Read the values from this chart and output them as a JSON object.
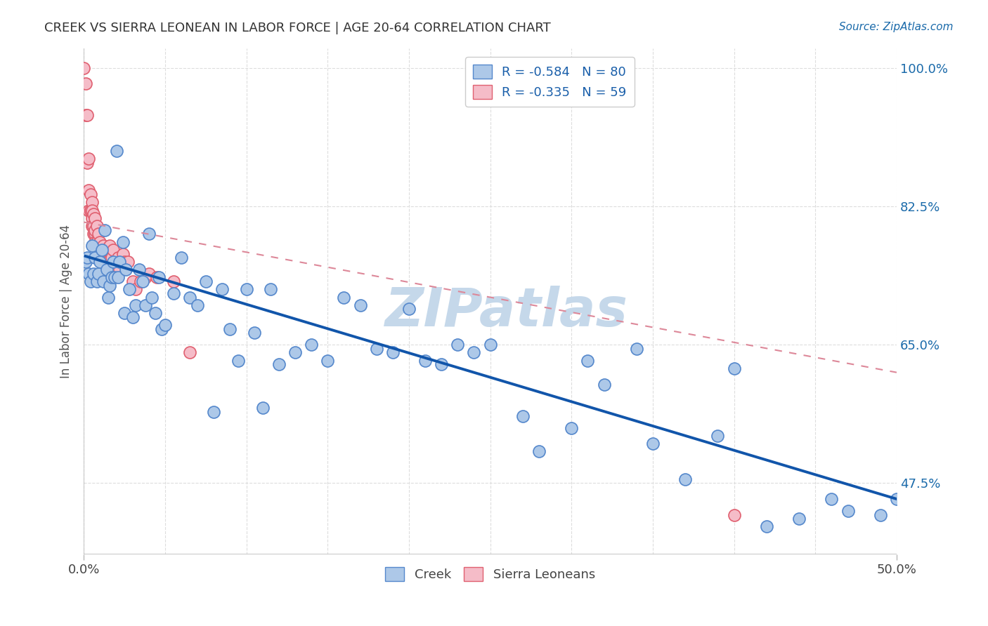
{
  "title": "CREEK VS SIERRA LEONEAN IN LABOR FORCE | AGE 20-64 CORRELATION CHART",
  "source": "Source: ZipAtlas.com",
  "ylabel": "In Labor Force | Age 20-64",
  "xlim": [
    0.0,
    0.5
  ],
  "ylim": [
    0.385,
    1.025
  ],
  "ytick_labels": [
    "100.0%",
    "82.5%",
    "65.0%",
    "47.5%"
  ],
  "ytick_values": [
    1.0,
    0.825,
    0.65,
    0.475
  ],
  "creek_R": -0.584,
  "creek_N": 80,
  "sierra_R": -0.335,
  "sierra_N": 59,
  "creek_color": "#adc8e8",
  "creek_edge_color": "#5588cc",
  "sierra_color": "#f5bcc8",
  "sierra_edge_color": "#e06070",
  "creek_line_color": "#1155aa",
  "sierra_line_color": "#dd8899",
  "watermark_color": "#c5d8ea",
  "background_color": "#ffffff",
  "grid_color": "#dddddd",
  "creek_scatter_x": [
    0.001,
    0.002,
    0.003,
    0.004,
    0.005,
    0.006,
    0.007,
    0.008,
    0.009,
    0.01,
    0.011,
    0.012,
    0.013,
    0.014,
    0.015,
    0.016,
    0.017,
    0.018,
    0.019,
    0.02,
    0.021,
    0.022,
    0.024,
    0.025,
    0.026,
    0.028,
    0.03,
    0.032,
    0.034,
    0.036,
    0.038,
    0.04,
    0.042,
    0.044,
    0.046,
    0.048,
    0.05,
    0.055,
    0.06,
    0.065,
    0.07,
    0.075,
    0.08,
    0.085,
    0.09,
    0.095,
    0.1,
    0.105,
    0.11,
    0.115,
    0.12,
    0.13,
    0.14,
    0.15,
    0.16,
    0.17,
    0.18,
    0.19,
    0.2,
    0.21,
    0.22,
    0.23,
    0.24,
    0.25,
    0.27,
    0.28,
    0.3,
    0.31,
    0.32,
    0.34,
    0.35,
    0.37,
    0.39,
    0.4,
    0.42,
    0.44,
    0.46,
    0.47,
    0.49,
    0.5
  ],
  "creek_scatter_y": [
    0.755,
    0.76,
    0.74,
    0.73,
    0.775,
    0.74,
    0.76,
    0.73,
    0.74,
    0.755,
    0.77,
    0.73,
    0.795,
    0.745,
    0.71,
    0.725,
    0.735,
    0.755,
    0.735,
    0.895,
    0.735,
    0.755,
    0.78,
    0.69,
    0.745,
    0.72,
    0.685,
    0.7,
    0.745,
    0.73,
    0.7,
    0.79,
    0.71,
    0.69,
    0.735,
    0.67,
    0.675,
    0.715,
    0.76,
    0.71,
    0.7,
    0.73,
    0.565,
    0.72,
    0.67,
    0.63,
    0.72,
    0.665,
    0.57,
    0.72,
    0.625,
    0.64,
    0.65,
    0.63,
    0.71,
    0.7,
    0.645,
    0.64,
    0.695,
    0.63,
    0.625,
    0.65,
    0.64,
    0.65,
    0.56,
    0.515,
    0.545,
    0.63,
    0.6,
    0.645,
    0.525,
    0.48,
    0.535,
    0.62,
    0.42,
    0.43,
    0.455,
    0.44,
    0.435,
    0.455
  ],
  "sierra_scatter_x": [
    0.0,
    0.001,
    0.001,
    0.002,
    0.002,
    0.003,
    0.003,
    0.003,
    0.004,
    0.004,
    0.004,
    0.005,
    0.005,
    0.005,
    0.005,
    0.006,
    0.006,
    0.006,
    0.007,
    0.007,
    0.007,
    0.007,
    0.008,
    0.008,
    0.008,
    0.009,
    0.009,
    0.01,
    0.01,
    0.01,
    0.011,
    0.011,
    0.012,
    0.012,
    0.013,
    0.013,
    0.014,
    0.014,
    0.015,
    0.015,
    0.016,
    0.017,
    0.018,
    0.019,
    0.02,
    0.021,
    0.022,
    0.024,
    0.025,
    0.027,
    0.03,
    0.032,
    0.035,
    0.038,
    0.04,
    0.045,
    0.055,
    0.065,
    0.4
  ],
  "sierra_scatter_y": [
    1.0,
    0.98,
    0.94,
    0.94,
    0.88,
    0.885,
    0.845,
    0.82,
    0.84,
    0.82,
    0.82,
    0.81,
    0.83,
    0.82,
    0.8,
    0.8,
    0.815,
    0.79,
    0.79,
    0.81,
    0.78,
    0.795,
    0.78,
    0.8,
    0.78,
    0.79,
    0.77,
    0.78,
    0.77,
    0.76,
    0.76,
    0.765,
    0.775,
    0.76,
    0.77,
    0.75,
    0.77,
    0.755,
    0.77,
    0.755,
    0.775,
    0.76,
    0.77,
    0.755,
    0.755,
    0.76,
    0.745,
    0.765,
    0.755,
    0.755,
    0.73,
    0.72,
    0.73,
    0.735,
    0.74,
    0.735,
    0.73,
    0.64,
    0.435
  ],
  "creek_line_x": [
    0.001,
    0.5
  ],
  "creek_line_y": [
    0.762,
    0.455
  ],
  "sierra_line_x": [
    0.0,
    0.5
  ],
  "sierra_line_y": [
    0.805,
    0.615
  ]
}
